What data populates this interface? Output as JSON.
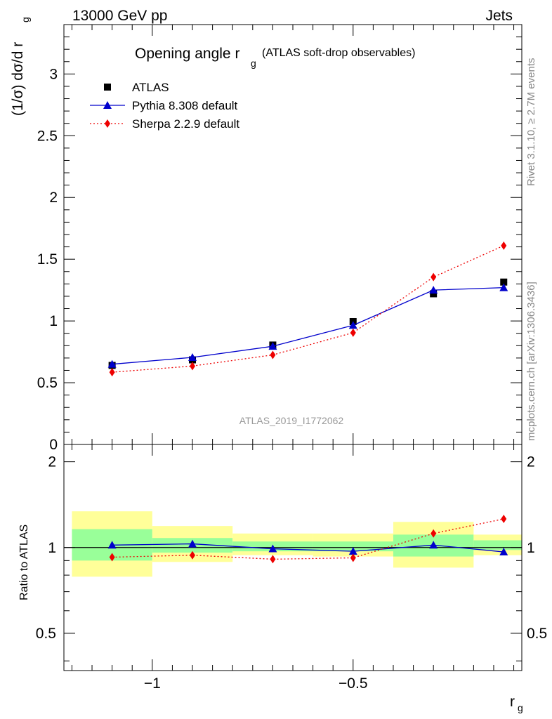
{
  "header": {
    "left": "13000 GeV pp",
    "right": "Jets"
  },
  "side_text": {
    "rivet": "Rivet 3.1.10, ≥ 2.7M events",
    "mcplots": "mcplots.cern.ch [arXiv:1306.3436]"
  },
  "watermark": "ATLAS_2019_I1772062",
  "colors": {
    "atlas": "#000000",
    "pythia": "#0000cc",
    "sherpa": "#ee0000",
    "band_inner": "#99ff99",
    "band_outer": "#ffff99"
  },
  "chart_data": [
    {
      "type": "line",
      "title": "Opening angle r_g (ATLAS soft-drop observables)",
      "title_main": "Opening angle r",
      "title_sub": "g",
      "title_rest": "(ATLAS soft-drop observables)",
      "ylabel": "(1/σ) dσ/d r_g",
      "ylabel_main": "(1/σ) dσ/d r",
      "ylabel_sub": "g",
      "xlim": [
        -1.22,
        -0.08
      ],
      "ylim": [
        0,
        3.4
      ],
      "yticks": [
        0,
        0.5,
        1,
        1.5,
        2,
        2.5,
        3
      ],
      "ytick_labels": [
        "0",
        "0.5",
        "1",
        "1.5",
        "2",
        "2.5",
        "3"
      ],
      "legend_position": "top-left",
      "series": [
        {
          "name": "ATLAS",
          "marker": "square",
          "x": [
            -1.1,
            -0.9,
            -0.7,
            -0.5,
            -0.3,
            -0.125
          ],
          "y": [
            0.64,
            0.685,
            0.805,
            0.995,
            1.22,
            1.315
          ]
        },
        {
          "name": "Pythia 8.308 default",
          "marker": "triangle",
          "line": "solid",
          "x": [
            -1.1,
            -0.9,
            -0.7,
            -0.5,
            -0.3,
            -0.125
          ],
          "y": [
            0.65,
            0.705,
            0.795,
            0.965,
            1.25,
            1.27
          ]
        },
        {
          "name": "Sherpa 2.2.9 default",
          "marker": "diamond",
          "line": "dotted",
          "x": [
            -1.1,
            -0.9,
            -0.7,
            -0.5,
            -0.3,
            -0.125
          ],
          "y": [
            0.585,
            0.635,
            0.725,
            0.905,
            1.355,
            1.61
          ]
        }
      ]
    },
    {
      "type": "line",
      "ylabel": "Ratio to ATLAS",
      "xlabel": "r_g",
      "xlabel_main": "r",
      "xlabel_sub": "g",
      "xlim": [
        -1.22,
        -0.08
      ],
      "ylim": [
        0.37,
        2.3
      ],
      "scale": "log",
      "xticks": [
        -1,
        -0.5
      ],
      "xtick_labels": [
        "−1",
        "−0.5"
      ],
      "yticks": [
        0.5,
        1,
        2
      ],
      "ytick_labels": [
        "0.5",
        "1",
        "2"
      ],
      "bins": [
        {
          "lo": -1.2,
          "hi": -1.0,
          "inner": [
            0.9,
            1.16
          ],
          "outer": [
            0.79,
            1.34
          ]
        },
        {
          "lo": -1.0,
          "hi": -0.8,
          "inner": [
            0.96,
            1.08
          ],
          "outer": [
            0.89,
            1.19
          ]
        },
        {
          "lo": -0.8,
          "hi": -0.6,
          "inner": [
            0.97,
            1.05
          ],
          "outer": [
            0.94,
            1.12
          ]
        },
        {
          "lo": -0.6,
          "hi": -0.4,
          "inner": [
            0.97,
            1.05
          ],
          "outer": [
            0.93,
            1.12
          ]
        },
        {
          "lo": -0.4,
          "hi": -0.2,
          "inner": [
            0.93,
            1.11
          ],
          "outer": [
            0.85,
            1.23
          ]
        },
        {
          "lo": -0.2,
          "hi": -0.08,
          "inner": [
            0.98,
            1.06
          ],
          "outer": [
            0.94,
            1.11
          ]
        }
      ],
      "series": [
        {
          "name": "Pythia 8.308 default",
          "marker": "triangle",
          "line": "solid",
          "x": [
            -1.1,
            -0.9,
            -0.7,
            -0.5,
            -0.3,
            -0.125
          ],
          "y": [
            1.02,
            1.03,
            0.99,
            0.97,
            1.02,
            0.965
          ]
        },
        {
          "name": "Sherpa 2.2.9 default",
          "marker": "diamond",
          "line": "dotted",
          "x": [
            -1.1,
            -0.9,
            -0.7,
            -0.5,
            -0.3,
            -0.125
          ],
          "y": [
            0.925,
            0.94,
            0.91,
            0.92,
            1.12,
            1.26
          ]
        }
      ]
    }
  ]
}
